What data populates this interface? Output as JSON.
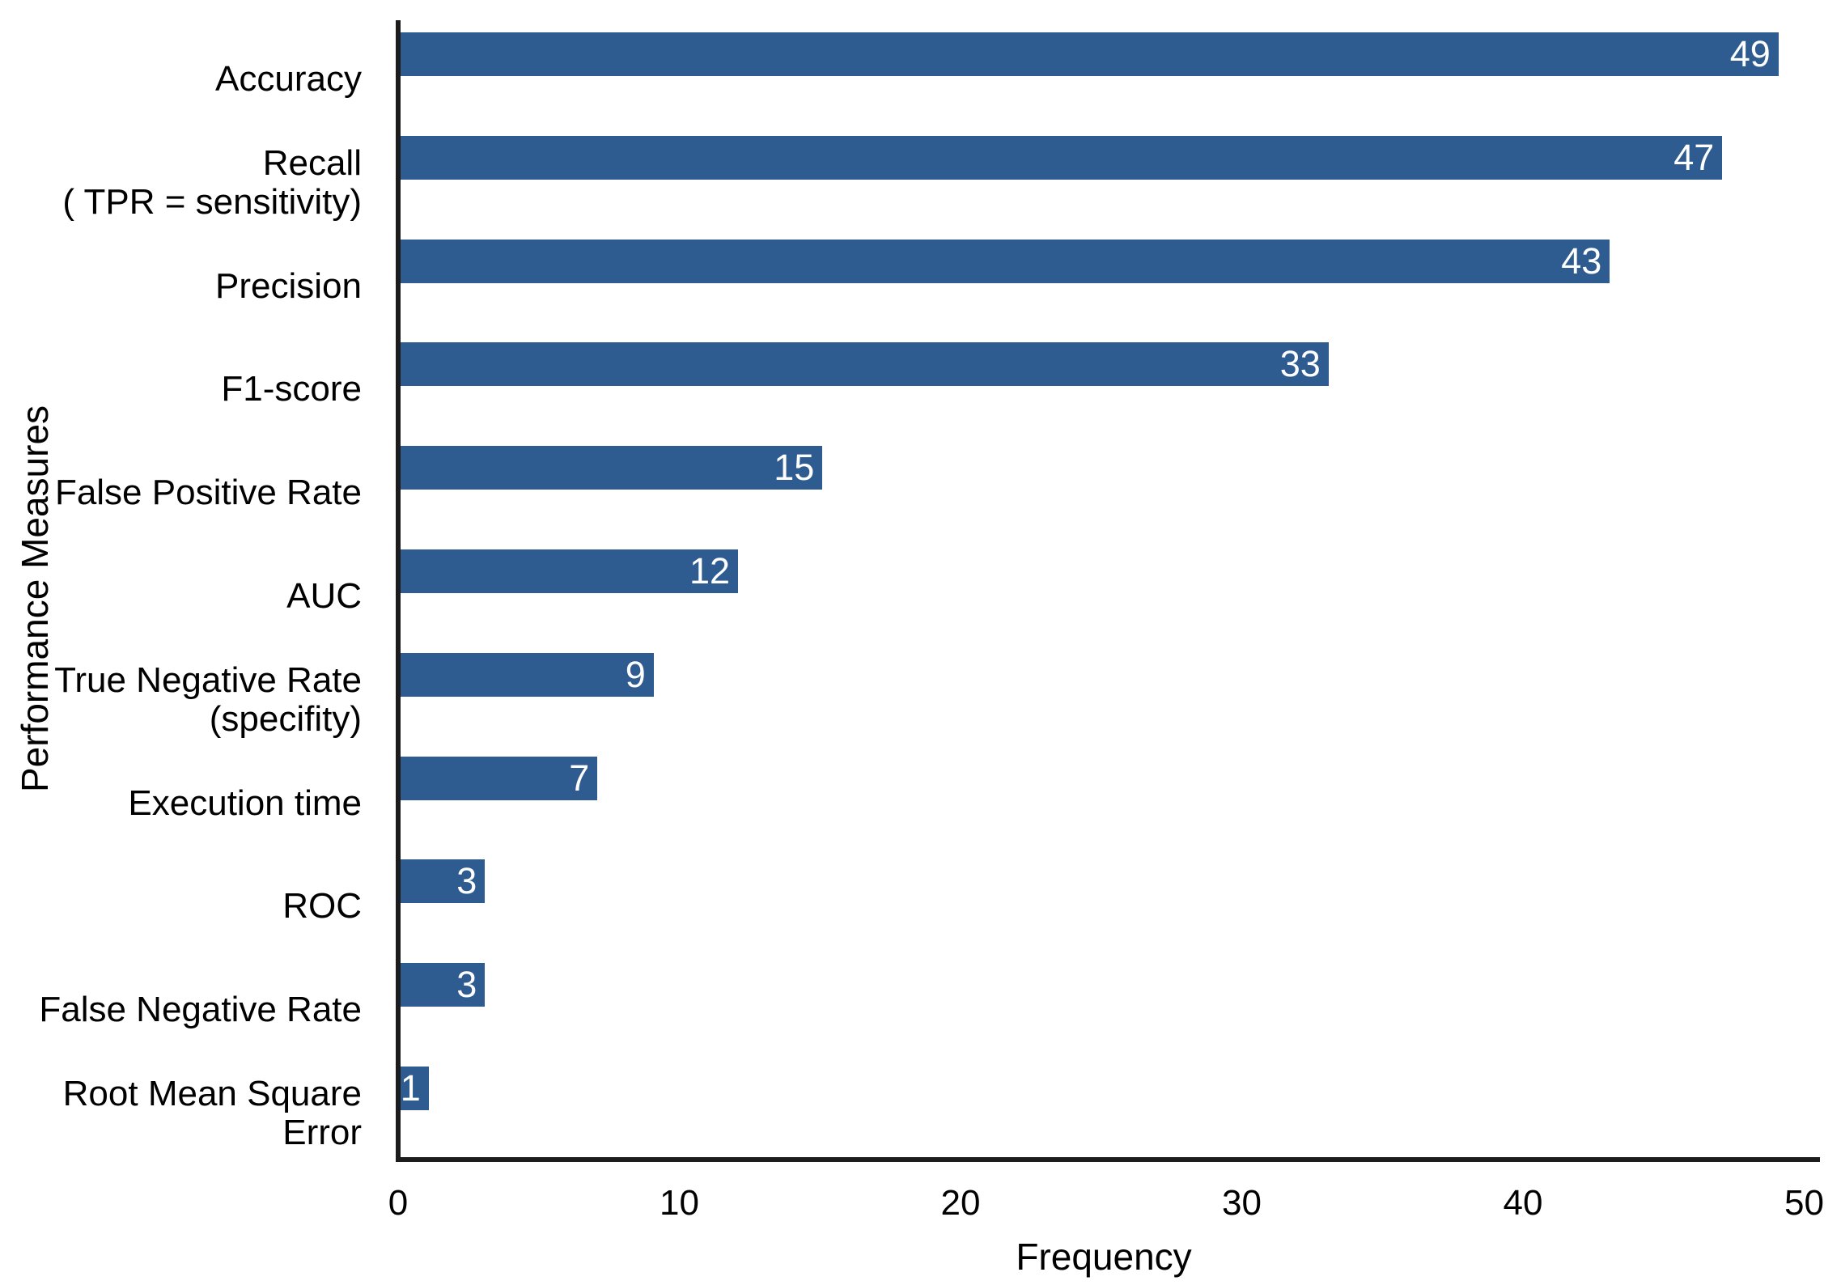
{
  "chart_data": {
    "type": "bar",
    "orientation": "horizontal",
    "title": "",
    "xlabel": "Frequency",
    "ylabel": "Performance Measures",
    "xlim": [
      0,
      50
    ],
    "xticks": [
      0,
      10,
      20,
      30,
      40,
      50
    ],
    "grid": false,
    "legend": null,
    "categories": [
      "Accuracy",
      "Recall ( TPR = sensitivity)",
      "Precision",
      "F1-score",
      "False Positive Rate",
      "AUC",
      "True Negative Rate (specifity)",
      "Execution time",
      "ROC",
      "False Negative Rate",
      "Root Mean Square Error"
    ],
    "category_label_lines": [
      [
        "Accuracy"
      ],
      [
        "Recall",
        "( TPR = sensitivity)"
      ],
      [
        "Precision"
      ],
      [
        "F1-score"
      ],
      [
        "False Positive Rate"
      ],
      [
        "AUC"
      ],
      [
        "True Negative Rate",
        "(specifity)"
      ],
      [
        "Execution time"
      ],
      [
        "ROC"
      ],
      [
        "False Negative Rate"
      ],
      [
        "Root Mean Square",
        "Error"
      ]
    ],
    "values": [
      49,
      47,
      43,
      33,
      15,
      12,
      9,
      7,
      3,
      3,
      1
    ],
    "value_labels": [
      "49",
      "47",
      "43",
      "33",
      "15",
      "12",
      "9",
      "7",
      "3",
      "3",
      "1"
    ],
    "colors": {
      "bar": "#2F5C90",
      "value_label": "#FFFFFF",
      "axis": "#1C1C1C",
      "text": "#000000",
      "background": "#FFFFFF"
    }
  }
}
